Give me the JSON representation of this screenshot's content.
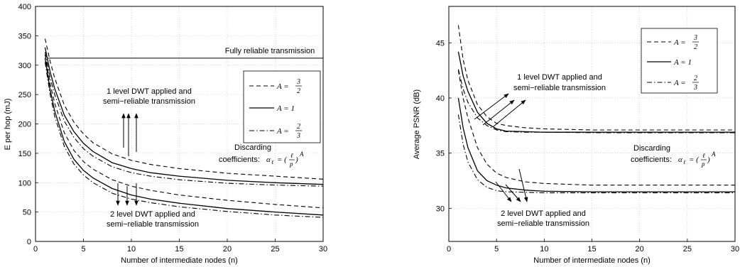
{
  "chart_data": [
    {
      "type": "line",
      "xlabel": "Number of intermediate nodes (n)",
      "ylabel": "E per hop (mJ)",
      "xlim": [
        0,
        30
      ],
      "ylim": [
        0,
        400
      ],
      "xticks": [
        0,
        5,
        10,
        15,
        20,
        25,
        30
      ],
      "yticks": [
        0,
        50,
        100,
        150,
        200,
        250,
        300,
        350,
        400
      ],
      "grid": true,
      "legend_position": "right",
      "legend": [
        {
          "prefix": "A = ",
          "num": "3",
          "den": "2",
          "style": "dashed"
        },
        {
          "prefix": "A = 1",
          "num": "",
          "den": "",
          "style": "solid"
        },
        {
          "prefix": "A = ",
          "num": "2",
          "den": "3",
          "style": "dashdot"
        }
      ],
      "reference_line": {
        "label": "Fully reliable transmission",
        "y": 312
      },
      "annotations": {
        "one_level": [
          "1 level DWT applied and",
          "semi−reliable transmission"
        ],
        "two_level": [
          "2 level DWT applied and",
          "semi−reliable transmission"
        ],
        "discard_text": "Discarding",
        "discard_text2": "coefficients:",
        "discard_formula": "αℓ = (ℓ/p)^A"
      },
      "x": [
        1,
        1.5,
        2,
        3,
        4,
        5,
        6,
        8,
        10,
        12,
        15,
        20,
        25,
        30
      ],
      "series": [
        {
          "group": "1 level",
          "style": "dashed",
          "values": [
            345,
            308,
            278,
            232,
            203,
            183,
            168,
            149,
            138,
            131,
            124,
            116,
            111,
            106
          ]
        },
        {
          "group": "1 level",
          "style": "solid",
          "values": [
            330,
            290,
            260,
            215,
            187,
            167,
            153,
            134,
            124,
            117,
            111,
            104,
            100,
            97
          ]
        },
        {
          "group": "1 level",
          "style": "dashdot",
          "values": [
            322,
            280,
            250,
            205,
            177,
            158,
            145,
            127,
            117,
            111,
            105,
            99,
            96,
            94
          ]
        },
        {
          "group": "2 level",
          "style": "dashed",
          "values": [
            318,
            270,
            235,
            185,
            155,
            136,
            123,
            105,
            94,
            87,
            79,
            70,
            63,
            57
          ]
        },
        {
          "group": "2 level",
          "style": "solid",
          "values": [
            312,
            260,
            222,
            170,
            140,
            121,
            108,
            90,
            79,
            72,
            65,
            56,
            50,
            45
          ]
        },
        {
          "group": "2 level",
          "style": "dashdot",
          "values": [
            305,
            252,
            213,
            162,
            132,
            113,
            100,
            82,
            72,
            66,
            59,
            51,
            45,
            41
          ]
        }
      ]
    },
    {
      "type": "line",
      "xlabel": "Number of intermediate nodes (n)",
      "ylabel": "Average PSNR (dB)",
      "xlim": [
        0,
        30
      ],
      "ylim": [
        27,
        48.3
      ],
      "xticks": [
        0,
        5,
        10,
        15,
        20,
        25,
        30
      ],
      "yticks": [
        30,
        35,
        40,
        45
      ],
      "grid": true,
      "legend_position": "top-right",
      "legend": [
        {
          "prefix": "A = ",
          "num": "3",
          "den": "2",
          "style": "dashed"
        },
        {
          "prefix": "A = 1",
          "num": "",
          "den": "",
          "style": "solid"
        },
        {
          "prefix": "A = ",
          "num": "2",
          "den": "3",
          "style": "dashdot"
        }
      ],
      "annotations": {
        "one_level": [
          "1 level DWT applied and",
          "semi−reliable transmission"
        ],
        "two_level": [
          "2 level DWT applied and",
          "semi−reliable transmission"
        ],
        "discard_text": "Discarding",
        "discard_text2": "coefficients:",
        "discard_formula": "αℓ = (ℓ/p)^A"
      },
      "x": [
        1,
        1.5,
        2,
        3,
        4,
        5,
        6,
        8,
        10,
        15,
        20,
        25,
        30
      ],
      "series": [
        {
          "group": "1 level",
          "style": "dashed",
          "values": [
            46.6,
            43.5,
            41.6,
            39.4,
            38.3,
            37.7,
            37.5,
            37.3,
            37.2,
            37.1,
            37.1,
            37.1,
            37.1
          ]
        },
        {
          "group": "1 level",
          "style": "solid",
          "values": [
            44.2,
            42.0,
            40.6,
            38.7,
            37.7,
            37.2,
            37.0,
            36.95,
            36.9,
            36.9,
            36.9,
            36.9,
            36.9
          ]
        },
        {
          "group": "1 level",
          "style": "dashdot",
          "values": [
            42.6,
            40.8,
            39.6,
            38.2,
            37.5,
            37.1,
            36.95,
            36.9,
            36.9,
            36.85,
            36.85,
            36.85,
            36.85
          ]
        },
        {
          "group": "2 level",
          "style": "dashed",
          "values": [
            42.5,
            40.0,
            38.2,
            35.5,
            34.0,
            33.2,
            32.8,
            32.4,
            32.25,
            32.1,
            32.1,
            32.1,
            32.1
          ]
        },
        {
          "group": "2 level",
          "style": "solid",
          "values": [
            40.0,
            37.3,
            35.5,
            33.4,
            32.5,
            32.1,
            31.85,
            31.65,
            31.55,
            31.5,
            31.5,
            31.5,
            31.5
          ]
        },
        {
          "group": "2 level",
          "style": "dashdot",
          "values": [
            38.5,
            35.8,
            34.2,
            32.6,
            31.9,
            31.6,
            31.5,
            31.45,
            31.4,
            31.4,
            31.4,
            31.4,
            31.4
          ]
        }
      ]
    }
  ]
}
